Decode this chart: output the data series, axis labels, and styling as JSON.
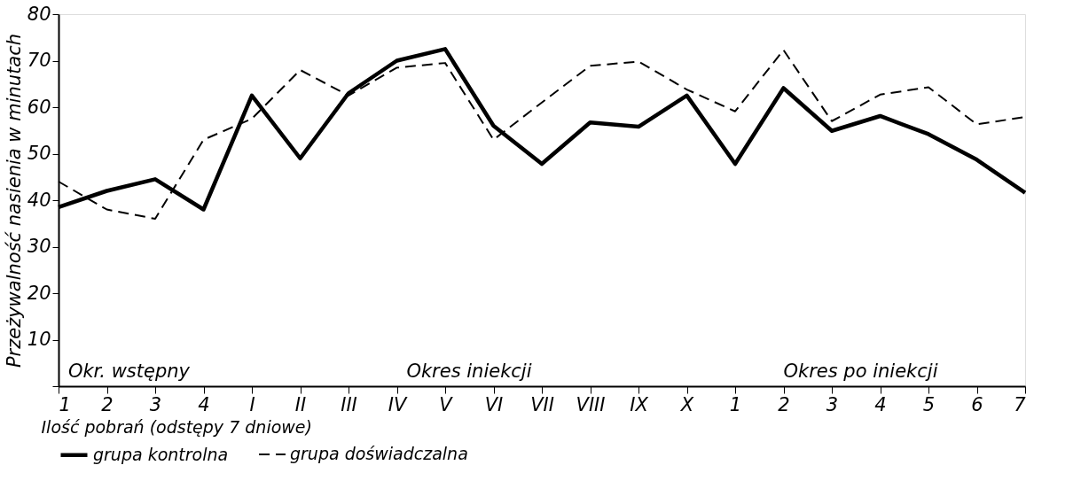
{
  "chart_data": {
    "type": "line",
    "ylabel": "Przeżywalność nasienia w minutach",
    "xlabel": "Ilość pobrań (odstępy 7 dniowe)",
    "categories": [
      "1",
      "2",
      "3",
      "4",
      "I",
      "II",
      "III",
      "IV",
      "V",
      "VI",
      "VII",
      "VIII",
      "IX",
      "X",
      "1",
      "2",
      "3",
      "4",
      "5",
      "6",
      "7"
    ],
    "series": [
      {
        "name": "grupa kontrolna",
        "color": "#000000",
        "line_style": "solid",
        "values": [
          38.5,
          42,
          44.5,
          38,
          62.5,
          49,
          63,
          70,
          72.5,
          56,
          47.8,
          56.7,
          55.8,
          62.5,
          47.8,
          64.1,
          54.9,
          58.1,
          54.2,
          48.7,
          41.6
        ]
      },
      {
        "name": "grupa doświadczalna",
        "color": "#000000",
        "line_style": "dashed",
        "values": [
          44,
          38,
          36,
          53,
          57.5,
          68,
          62.5,
          68.5,
          69.5,
          53,
          61,
          68.9,
          69.8,
          63.8,
          59.1,
          72.3,
          57,
          62.7,
          64.3,
          56.3,
          57.9
        ]
      }
    ],
    "ylim": [
      0,
      80
    ],
    "yticks": [
      {
        "value": 0,
        "label": null
      },
      10,
      20,
      30,
      40,
      50,
      60,
      70,
      80
    ],
    "annotations": [
      "Okr. wstępny",
      "Okres iniekcji",
      "Okres po iniekcji"
    ],
    "grid": false,
    "legend": "bottom",
    "marker": "none"
  }
}
